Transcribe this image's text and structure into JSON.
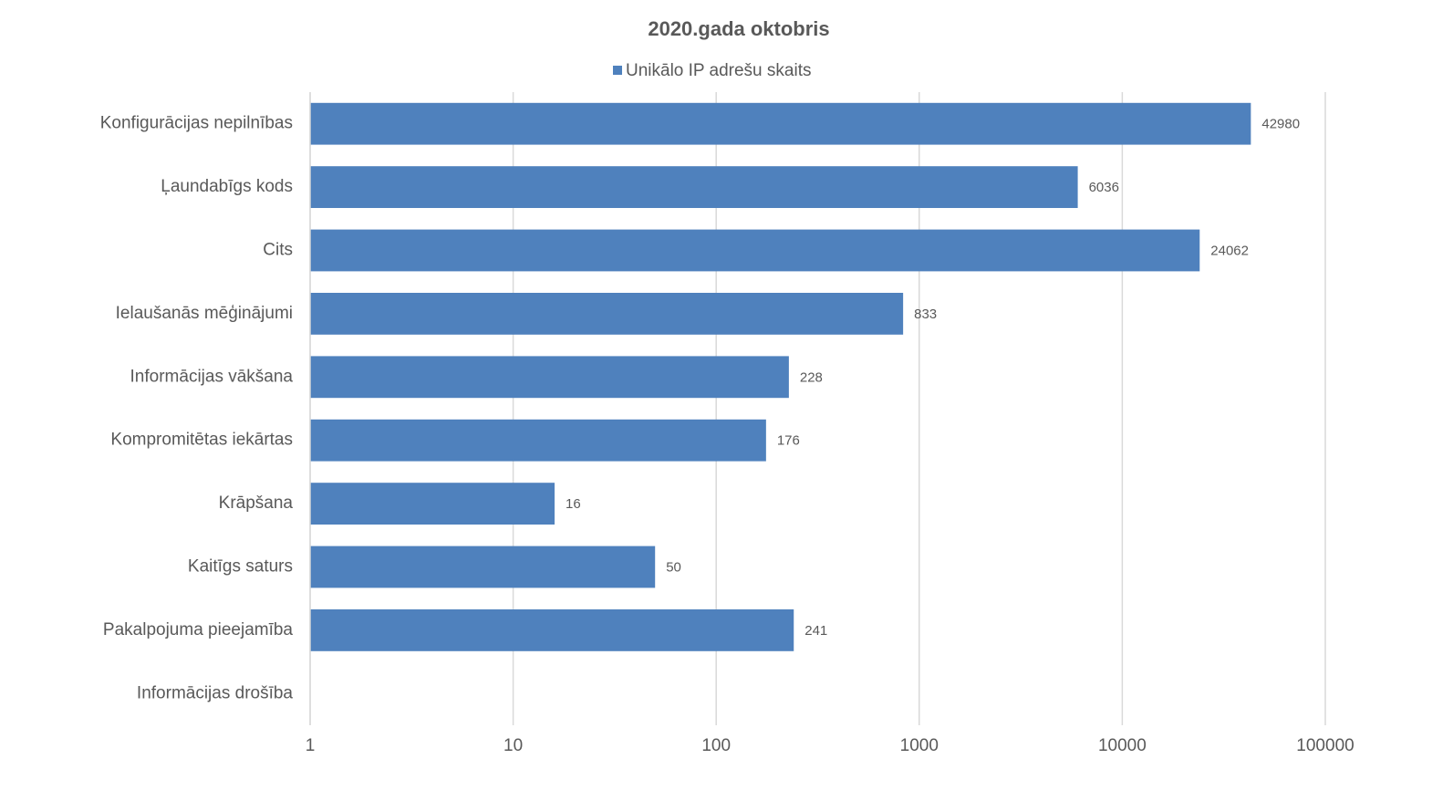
{
  "chart_data": {
    "type": "bar",
    "orientation": "horizontal",
    "title": "2020.gada oktobris",
    "categories": [
      "Konfigurācijas nepilnības",
      "Ļaundabīgs kods",
      "Cits",
      "Ielaušanās mēģinājumi",
      "Informācijas vākšana",
      "Kompromitētas iekārtas",
      "Krāpšana",
      "Kaitīgs saturs",
      "Pakalpojuma pieejamība",
      "Informācijas drošība"
    ],
    "series": [
      {
        "name": "Unikālo IP adrešu skaits",
        "color": "#4f81bd",
        "values": [
          42980,
          6036,
          24062,
          833,
          228,
          176,
          16,
          50,
          241,
          null
        ]
      }
    ],
    "xscale": "log",
    "xlim": [
      1,
      100000
    ],
    "xticks": [
      1,
      10,
      100,
      1000,
      10000,
      100000
    ],
    "grid": true,
    "legend": "top"
  }
}
